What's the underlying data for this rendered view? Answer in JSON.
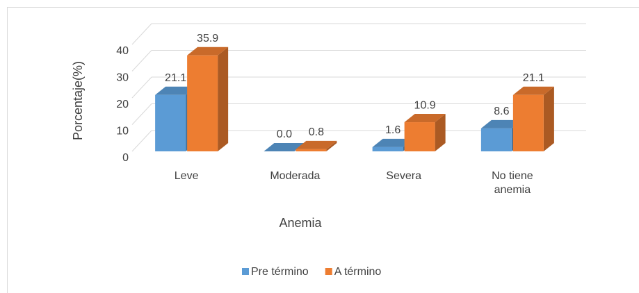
{
  "chart_data": {
    "type": "bar3d",
    "categories": [
      "Leve",
      "Moderada",
      "Severa",
      "No tiene anemia"
    ],
    "series": [
      {
        "name": "Pre término",
        "color": "#5b9bd5",
        "values": [
          21.1,
          0.0,
          1.6,
          8.6
        ],
        "value_labels": [
          "21.1",
          "0.0",
          "1.6",
          "8.6"
        ]
      },
      {
        "name": "A término",
        "color": "#ed7d31",
        "values": [
          35.9,
          0.8,
          10.9,
          21.1
        ],
        "value_labels": [
          "35.9",
          "0.8",
          "10.9",
          "21.1"
        ]
      }
    ],
    "y_label": "Porcentaje(%)",
    "x_label": "Anemia",
    "ylim": [
      0,
      40
    ],
    "yticks": [
      0,
      10,
      20,
      30,
      40
    ],
    "grid": true,
    "legend": "bottom"
  }
}
